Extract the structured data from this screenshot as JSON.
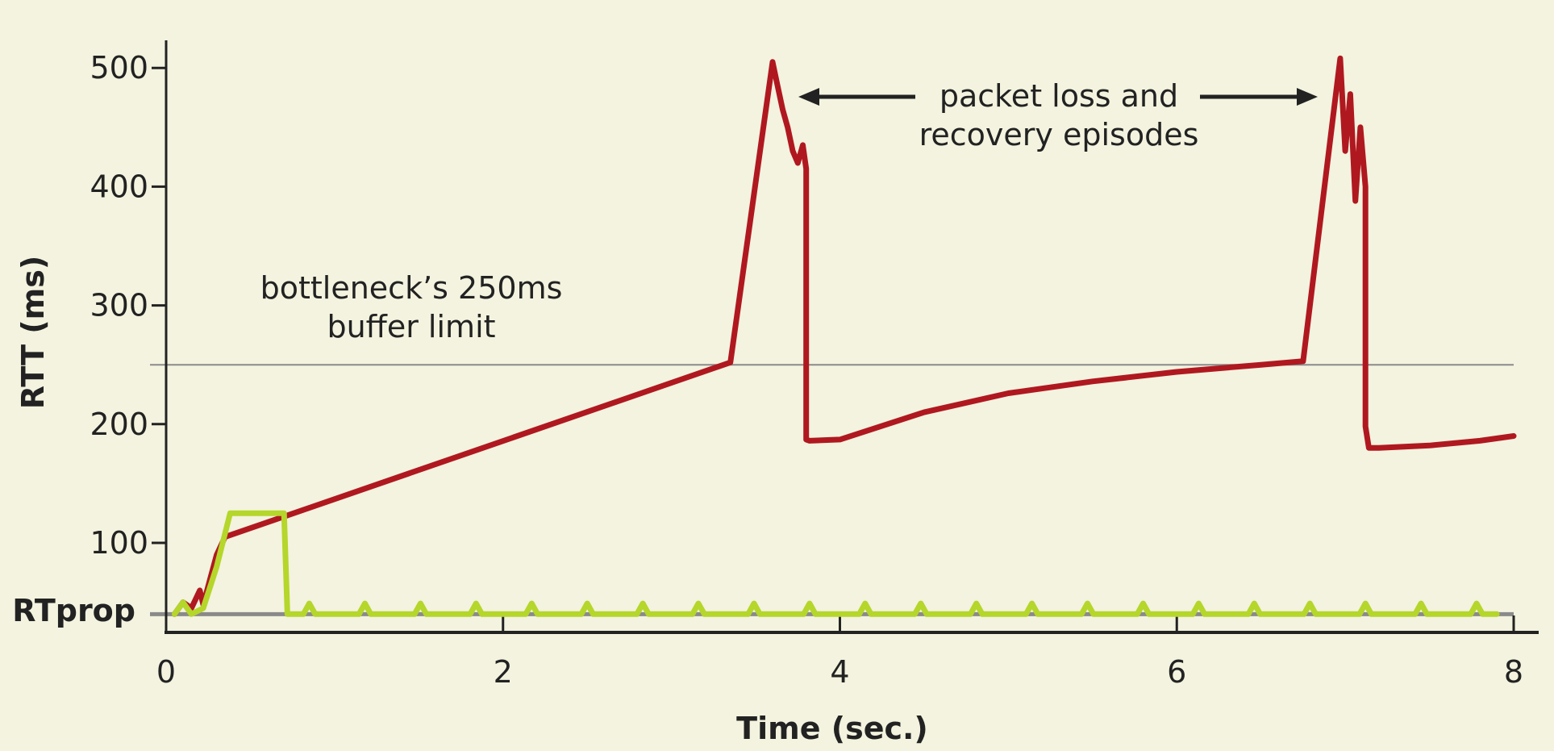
{
  "chart_data": {
    "type": "line",
    "xlabel": "Time (sec.)",
    "ylabel": "RTT (ms)",
    "xlim": [
      0,
      8
    ],
    "ylim": [
      0,
      500
    ],
    "x_ticks": [
      0,
      2,
      4,
      6,
      8
    ],
    "y_ticks": [
      {
        "value": 100,
        "label": "100"
      },
      {
        "value": 200,
        "label": "200"
      },
      {
        "value": 300,
        "label": "300"
      },
      {
        "value": 400,
        "label": "400"
      },
      {
        "value": 500,
        "label": "500"
      }
    ],
    "rtprop": {
      "label": "RTprop",
      "value": 40
    },
    "reference_lines": [
      {
        "value": 250,
        "color": "#8a8a8a"
      }
    ],
    "annotations": {
      "buffer_limit": [
        "bottleneck’s 250ms",
        "buffer limit"
      ],
      "loss_episodes": [
        "packet loss and",
        "recovery episodes"
      ]
    },
    "series": [
      {
        "color": "#b01820",
        "x": [
          0.05,
          0.1,
          0.15,
          0.2,
          0.22,
          0.3,
          0.35,
          3.35,
          3.6,
          3.63,
          3.66,
          3.69,
          3.72,
          3.75,
          3.78,
          3.8,
          3.8,
          3.82,
          4.0,
          4.5,
          5.0,
          5.5,
          6.0,
          6.5,
          6.75,
          6.97,
          7.0,
          7.03,
          7.06,
          7.09,
          7.12,
          7.12,
          7.14,
          7.2,
          7.5,
          7.8,
          8.0
        ],
        "y": [
          40,
          50,
          45,
          60,
          48,
          90,
          105,
          252,
          505,
          485,
          465,
          450,
          430,
          420,
          435,
          415,
          187,
          186,
          187,
          210,
          226,
          236,
          244,
          250,
          253,
          508,
          430,
          478,
          388,
          450,
          400,
          198,
          180,
          180,
          182,
          186,
          190
        ]
      },
      {
        "color": "#b5d62a",
        "x": [
          0.05,
          0.1,
          0.15,
          0.22,
          0.3,
          0.38,
          0.55,
          0.7,
          0.72,
          0.8,
          0.85,
          0.9,
          7.9
        ],
        "y": [
          40,
          50,
          40,
          45,
          80,
          125,
          125,
          125,
          40,
          40,
          45,
          40,
          40
        ],
        "bumps": {
          "start": 0.85,
          "spacing": 0.33,
          "end": 7.8,
          "height": 9
        }
      }
    ]
  }
}
